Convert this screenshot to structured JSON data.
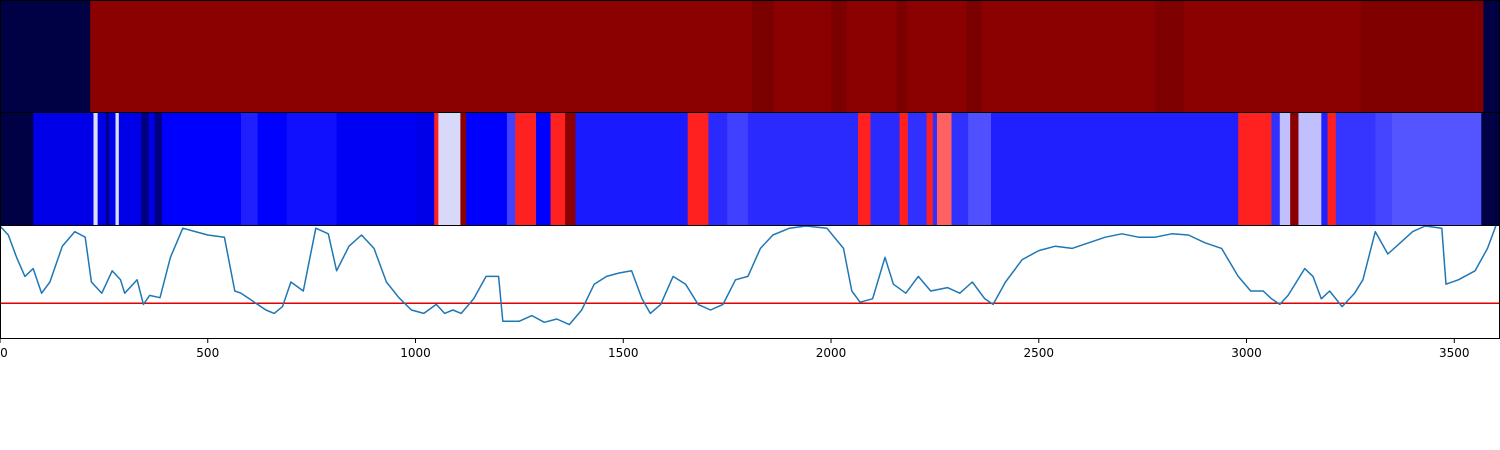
{
  "chart_data": [
    {
      "type": "heatmap",
      "xlim": [
        0,
        3610
      ],
      "colors": {
        "default": "#8b0000",
        "edge": "#000045"
      },
      "segments": [
        {
          "x0": 0,
          "x1": 217,
          "color": "#000045"
        },
        {
          "x0": 217,
          "x1": 1810,
          "color": "#8b0000"
        },
        {
          "x0": 1810,
          "x1": 1862,
          "color": "#7b0000"
        },
        {
          "x0": 1862,
          "x1": 2000,
          "color": "#8b0000"
        },
        {
          "x0": 2000,
          "x1": 2038,
          "color": "#7b0000"
        },
        {
          "x0": 2038,
          "x1": 2158,
          "color": "#8b0000"
        },
        {
          "x0": 2158,
          "x1": 2182,
          "color": "#7b0000"
        },
        {
          "x0": 2182,
          "x1": 2326,
          "color": "#8b0000"
        },
        {
          "x0": 2326,
          "x1": 2362,
          "color": "#7b0000"
        },
        {
          "x0": 2362,
          "x1": 2780,
          "color": "#8b0000"
        },
        {
          "x0": 2780,
          "x1": 2850,
          "color": "#7f0000"
        },
        {
          "x0": 2850,
          "x1": 3275,
          "color": "#8b0000"
        },
        {
          "x0": 3275,
          "x1": 3570,
          "color": "#800000"
        },
        {
          "x0": 3570,
          "x1": 3610,
          "color": "#000045"
        }
      ]
    },
    {
      "type": "heatmap",
      "xlim": [
        0,
        3610
      ],
      "segments": [
        {
          "x0": 0,
          "x1": 80,
          "color": "#000045"
        },
        {
          "x0": 80,
          "x1": 225,
          "color": "#0000e8"
        },
        {
          "x0": 225,
          "x1": 235,
          "color": "#dcdcf8"
        },
        {
          "x0": 235,
          "x1": 255,
          "color": "#0000e8"
        },
        {
          "x0": 255,
          "x1": 262,
          "color": "#000080"
        },
        {
          "x0": 262,
          "x1": 278,
          "color": "#0000e8"
        },
        {
          "x0": 278,
          "x1": 286,
          "color": "#dcdcf8"
        },
        {
          "x0": 286,
          "x1": 340,
          "color": "#0000e8"
        },
        {
          "x0": 340,
          "x1": 358,
          "color": "#000080"
        },
        {
          "x0": 358,
          "x1": 372,
          "color": "#0000e8"
        },
        {
          "x0": 372,
          "x1": 390,
          "color": "#000080"
        },
        {
          "x0": 390,
          "x1": 580,
          "color": "#0000ff"
        },
        {
          "x0": 580,
          "x1": 620,
          "color": "#2020ff"
        },
        {
          "x0": 620,
          "x1": 690,
          "color": "#0000ff"
        },
        {
          "x0": 690,
          "x1": 810,
          "color": "#1010ff"
        },
        {
          "x0": 810,
          "x1": 1000,
          "color": "#0000f4"
        },
        {
          "x0": 1000,
          "x1": 1045,
          "color": "#0000e8"
        },
        {
          "x0": 1045,
          "x1": 1055,
          "color": "#ff2020"
        },
        {
          "x0": 1055,
          "x1": 1108,
          "color": "#d8d8f8"
        },
        {
          "x0": 1108,
          "x1": 1122,
          "color": "#8b0000"
        },
        {
          "x0": 1122,
          "x1": 1220,
          "color": "#0000ff"
        },
        {
          "x0": 1220,
          "x1": 1240,
          "color": "#4040ff"
        },
        {
          "x0": 1240,
          "x1": 1290,
          "color": "#ff2020"
        },
        {
          "x0": 1290,
          "x1": 1325,
          "color": "#0000ff"
        },
        {
          "x0": 1325,
          "x1": 1335,
          "color": "#ff2020"
        },
        {
          "x0": 1335,
          "x1": 1360,
          "color": "#ff2020"
        },
        {
          "x0": 1360,
          "x1": 1385,
          "color": "#8b0000"
        },
        {
          "x0": 1385,
          "x1": 1655,
          "color": "#1a1aff"
        },
        {
          "x0": 1655,
          "x1": 1705,
          "color": "#ff2020"
        },
        {
          "x0": 1705,
          "x1": 1750,
          "color": "#2a2aff"
        },
        {
          "x0": 1750,
          "x1": 1800,
          "color": "#4040ff"
        },
        {
          "x0": 1800,
          "x1": 2065,
          "color": "#2a2aff"
        },
        {
          "x0": 2065,
          "x1": 2095,
          "color": "#ff2020"
        },
        {
          "x0": 2095,
          "x1": 2165,
          "color": "#2a2aff"
        },
        {
          "x0": 2165,
          "x1": 2185,
          "color": "#ff2020"
        },
        {
          "x0": 2185,
          "x1": 2230,
          "color": "#3030ff"
        },
        {
          "x0": 2230,
          "x1": 2245,
          "color": "#ff2020"
        },
        {
          "x0": 2245,
          "x1": 2255,
          "color": "#3030ff"
        },
        {
          "x0": 2255,
          "x1": 2290,
          "color": "#ff6060"
        },
        {
          "x0": 2290,
          "x1": 2330,
          "color": "#3030ff"
        },
        {
          "x0": 2330,
          "x1": 2385,
          "color": "#5050ff"
        },
        {
          "x0": 2385,
          "x1": 2980,
          "color": "#2020ff"
        },
        {
          "x0": 2980,
          "x1": 3060,
          "color": "#ff2020"
        },
        {
          "x0": 3060,
          "x1": 3080,
          "color": "#3030ff"
        },
        {
          "x0": 3080,
          "x1": 3105,
          "color": "#c0c0ff"
        },
        {
          "x0": 3105,
          "x1": 3125,
          "color": "#8b0000"
        },
        {
          "x0": 3125,
          "x1": 3180,
          "color": "#c0c0ff"
        },
        {
          "x0": 3180,
          "x1": 3195,
          "color": "#2020ff"
        },
        {
          "x0": 3195,
          "x1": 3215,
          "color": "#ff2020"
        },
        {
          "x0": 3215,
          "x1": 3310,
          "color": "#3535ff"
        },
        {
          "x0": 3310,
          "x1": 3350,
          "color": "#4545ff"
        },
        {
          "x0": 3350,
          "x1": 3565,
          "color": "#5555ff"
        },
        {
          "x0": 3565,
          "x1": 3610,
          "color": "#000045"
        }
      ]
    },
    {
      "type": "line",
      "xlim": [
        0,
        3610
      ],
      "ylim": [
        0,
        1
      ],
      "threshold": 0.31,
      "line_color": "#1f77b4",
      "threshold_color": "#e00000",
      "xticks": [
        0,
        500,
        1000,
        1500,
        2000,
        2500,
        3000,
        3500
      ],
      "points": [
        [
          0,
          1.0
        ],
        [
          20,
          0.92
        ],
        [
          40,
          0.72
        ],
        [
          60,
          0.55
        ],
        [
          80,
          0.62
        ],
        [
          100,
          0.4
        ],
        [
          120,
          0.5
        ],
        [
          150,
          0.82
        ],
        [
          180,
          0.95
        ],
        [
          205,
          0.9
        ],
        [
          220,
          0.5
        ],
        [
          245,
          0.4
        ],
        [
          270,
          0.6
        ],
        [
          290,
          0.52
        ],
        [
          300,
          0.4
        ],
        [
          330,
          0.52
        ],
        [
          345,
          0.3
        ],
        [
          360,
          0.38
        ],
        [
          385,
          0.36
        ],
        [
          410,
          0.72
        ],
        [
          440,
          0.98
        ],
        [
          470,
          0.95
        ],
        [
          500,
          0.92
        ],
        [
          540,
          0.9
        ],
        [
          565,
          0.42
        ],
        [
          580,
          0.4
        ],
        [
          600,
          0.35
        ],
        [
          620,
          0.3
        ],
        [
          640,
          0.25
        ],
        [
          660,
          0.22
        ],
        [
          680,
          0.28
        ],
        [
          700,
          0.5
        ],
        [
          730,
          0.42
        ],
        [
          760,
          0.98
        ],
        [
          790,
          0.93
        ],
        [
          810,
          0.6
        ],
        [
          840,
          0.82
        ],
        [
          870,
          0.92
        ],
        [
          900,
          0.8
        ],
        [
          930,
          0.5
        ],
        [
          960,
          0.36
        ],
        [
          990,
          0.25
        ],
        [
          1020,
          0.22
        ],
        [
          1050,
          0.3
        ],
        [
          1070,
          0.22
        ],
        [
          1090,
          0.25
        ],
        [
          1110,
          0.22
        ],
        [
          1140,
          0.35
        ],
        [
          1170,
          0.55
        ],
        [
          1200,
          0.55
        ],
        [
          1210,
          0.15
        ],
        [
          1250,
          0.15
        ],
        [
          1280,
          0.2
        ],
        [
          1310,
          0.14
        ],
        [
          1340,
          0.17
        ],
        [
          1370,
          0.12
        ],
        [
          1400,
          0.25
        ],
        [
          1430,
          0.48
        ],
        [
          1460,
          0.55
        ],
        [
          1490,
          0.58
        ],
        [
          1520,
          0.6
        ],
        [
          1545,
          0.35
        ],
        [
          1565,
          0.22
        ],
        [
          1590,
          0.3
        ],
        [
          1620,
          0.55
        ],
        [
          1650,
          0.48
        ],
        [
          1680,
          0.3
        ],
        [
          1710,
          0.25
        ],
        [
          1740,
          0.3
        ],
        [
          1770,
          0.52
        ],
        [
          1800,
          0.55
        ],
        [
          1830,
          0.8
        ],
        [
          1860,
          0.92
        ],
        [
          1900,
          0.98
        ],
        [
          1940,
          1.0
        ],
        [
          1990,
          0.98
        ],
        [
          2030,
          0.8
        ],
        [
          2050,
          0.42
        ],
        [
          2070,
          0.32
        ],
        [
          2100,
          0.35
        ],
        [
          2130,
          0.72
        ],
        [
          2150,
          0.48
        ],
        [
          2180,
          0.4
        ],
        [
          2210,
          0.55
        ],
        [
          2240,
          0.42
        ],
        [
          2280,
          0.45
        ],
        [
          2310,
          0.4
        ],
        [
          2340,
          0.5
        ],
        [
          2370,
          0.35
        ],
        [
          2390,
          0.3
        ],
        [
          2420,
          0.5
        ],
        [
          2460,
          0.7
        ],
        [
          2500,
          0.78
        ],
        [
          2540,
          0.82
        ],
        [
          2580,
          0.8
        ],
        [
          2620,
          0.85
        ],
        [
          2660,
          0.9
        ],
        [
          2700,
          0.93
        ],
        [
          2740,
          0.9
        ],
        [
          2780,
          0.9
        ],
        [
          2820,
          0.93
        ],
        [
          2860,
          0.92
        ],
        [
          2900,
          0.85
        ],
        [
          2940,
          0.8
        ],
        [
          2980,
          0.55
        ],
        [
          3010,
          0.42
        ],
        [
          3040,
          0.42
        ],
        [
          3060,
          0.35
        ],
        [
          3080,
          0.3
        ],
        [
          3100,
          0.38
        ],
        [
          3140,
          0.62
        ],
        [
          3160,
          0.55
        ],
        [
          3180,
          0.35
        ],
        [
          3200,
          0.42
        ],
        [
          3230,
          0.28
        ],
        [
          3260,
          0.4
        ],
        [
          3280,
          0.52
        ],
        [
          3310,
          0.95
        ],
        [
          3340,
          0.75
        ],
        [
          3370,
          0.85
        ],
        [
          3400,
          0.95
        ],
        [
          3430,
          1.0
        ],
        [
          3470,
          0.98
        ],
        [
          3480,
          0.48
        ],
        [
          3510,
          0.52
        ],
        [
          3550,
          0.6
        ],
        [
          3580,
          0.8
        ],
        [
          3600,
          1.0
        ]
      ]
    }
  ]
}
